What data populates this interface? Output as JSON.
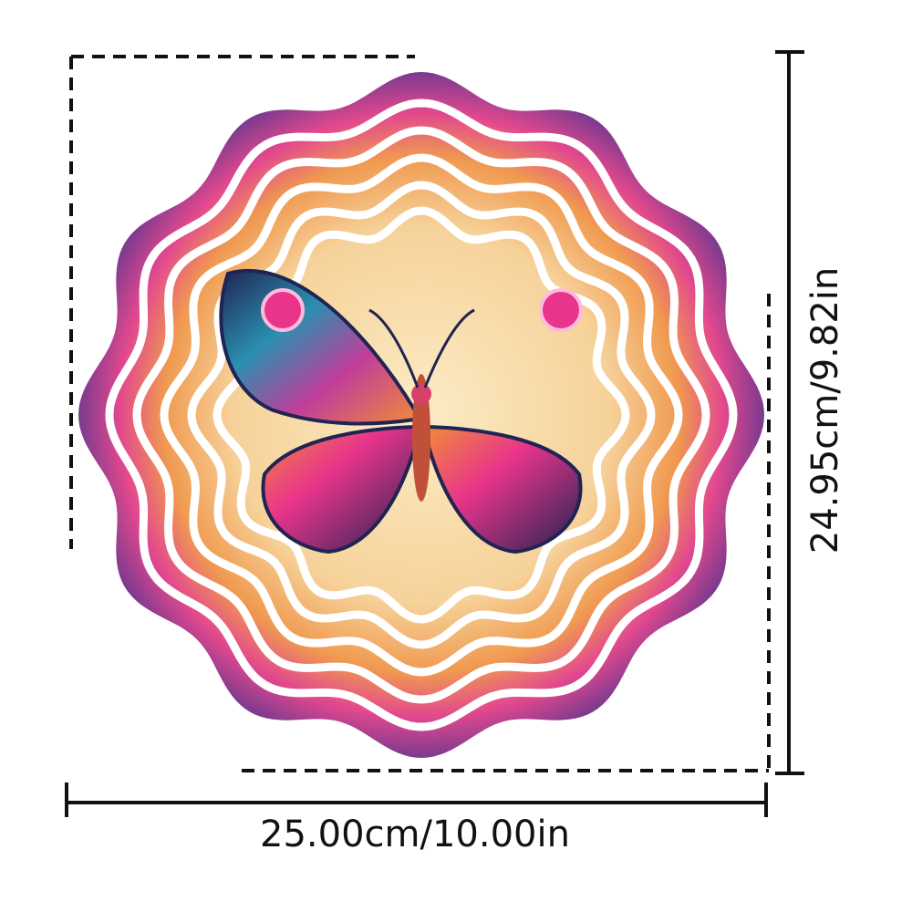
{
  "product": {
    "width_label": "25.00cm/10.00in",
    "height_label": "24.95cm/9.82in",
    "subject": "butterfly-wind-spinner",
    "colors": {
      "pink": "#e8348a",
      "orange": "#f08a3a",
      "navy": "#1f2452",
      "teal": "#2a8fb0",
      "cream": "#f8e2b4",
      "purple": "#8a3fa0"
    }
  }
}
